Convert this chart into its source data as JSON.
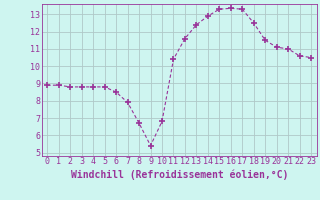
{
  "x": [
    0,
    1,
    2,
    3,
    4,
    5,
    6,
    7,
    8,
    9,
    10,
    11,
    12,
    13,
    14,
    15,
    16,
    17,
    18,
    19,
    20,
    21,
    22,
    23
  ],
  "y": [
    8.9,
    8.9,
    8.8,
    8.8,
    8.8,
    8.8,
    8.5,
    7.9,
    6.7,
    5.4,
    6.8,
    10.4,
    11.6,
    12.4,
    12.9,
    13.3,
    13.35,
    13.3,
    12.5,
    11.5,
    11.1,
    11.0,
    10.6,
    10.5
  ],
  "line_color": "#993399",
  "marker": "+",
  "marker_size": 4,
  "bg_color": "#cef5f0",
  "grid_color": "#b0c8c8",
  "xlabel": "Windchill (Refroidissement éolien,°C)",
  "ylabel": "",
  "xlim": [
    -0.5,
    23.5
  ],
  "ylim": [
    4.8,
    13.6
  ],
  "yticks": [
    5,
    6,
    7,
    8,
    9,
    10,
    11,
    12,
    13
  ],
  "xticks": [
    0,
    1,
    2,
    3,
    4,
    5,
    6,
    7,
    8,
    9,
    10,
    11,
    12,
    13,
    14,
    15,
    16,
    17,
    18,
    19,
    20,
    21,
    22,
    23
  ],
  "tick_color": "#993399",
  "label_color": "#993399",
  "font_family": "monospace",
  "tick_labelsize": 6,
  "xlabel_fontsize": 7
}
